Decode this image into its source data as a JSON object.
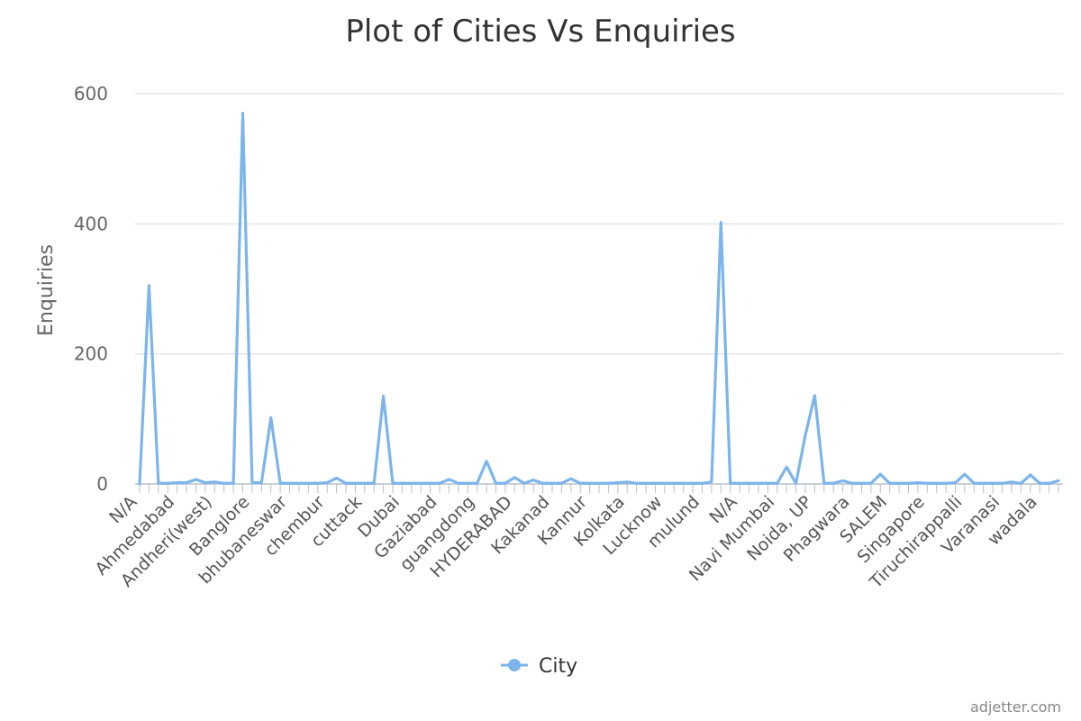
{
  "chart_data": {
    "type": "line",
    "title": "Plot of Cities Vs Enquiries",
    "ylabel": "Enquiries",
    "xlabel": "",
    "ylim": [
      0,
      600
    ],
    "yticks": [
      0,
      200,
      400,
      600
    ],
    "grid": true,
    "legend_position": "bottom-center",
    "x_tick_labels": [
      "N/A",
      "Ahmedabad",
      "Andheri(west)",
      "Banglore",
      "bhubaneswar",
      "chembur",
      "cuttack",
      "Dubai",
      "Gaziabad",
      "guangdong",
      "HYDERABAD",
      "Kakanad",
      "Kannur",
      "Kolkata",
      "Lucknow",
      "mulund",
      "N/A",
      "Navi Mumbai",
      "Noida, UP",
      "Phagwara",
      "SALEM",
      "Singapore",
      "Tiruchirappalli",
      "Varanasi",
      "wadala"
    ],
    "series": [
      {
        "name": "City",
        "color": "#7cb5ec",
        "values": [
          0,
          305,
          1,
          1,
          2,
          2,
          7,
          2,
          3,
          1,
          1,
          570,
          2,
          2,
          102,
          1,
          1,
          1,
          1,
          1,
          2,
          9,
          1,
          1,
          1,
          1,
          135,
          1,
          1,
          1,
          1,
          1,
          1,
          7,
          1,
          1,
          1,
          35,
          1,
          1,
          10,
          1,
          6,
          1,
          1,
          1,
          8,
          1,
          1,
          1,
          1,
          2,
          3,
          1,
          1,
          1,
          1,
          1,
          1,
          1,
          1,
          3,
          402,
          1,
          1,
          1,
          1,
          1,
          1,
          26,
          1,
          75,
          136,
          1,
          1,
          5,
          1,
          1,
          1,
          15,
          1,
          1,
          1,
          2,
          1,
          1,
          1,
          2,
          15,
          1,
          1,
          1,
          1,
          3,
          1,
          14,
          1,
          1,
          5
        ]
      }
    ]
  },
  "credit": "adjetter.com"
}
